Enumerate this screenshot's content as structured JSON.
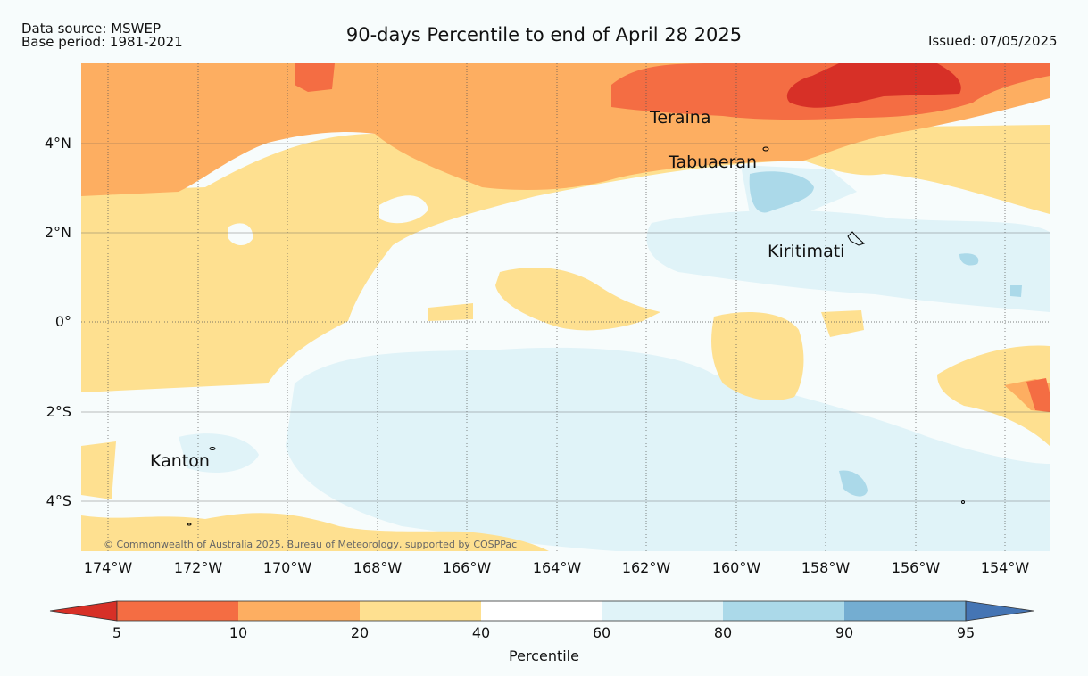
{
  "header": {
    "data_source": "Data source: MSWEP",
    "base_period": "Base period: 1981-2021",
    "title": "90-days Percentile to end of April 28 2025",
    "issued": "Issued: 07/05/2025"
  },
  "map": {
    "lat_labels": [
      "4°N",
      "2°N",
      "0°",
      "2°S",
      "4°S"
    ],
    "lon_labels": [
      "174°W",
      "172°W",
      "170°W",
      "168°W",
      "166°W",
      "164°W",
      "162°W",
      "160°W",
      "158°W",
      "156°W",
      "154°W"
    ],
    "places": [
      "Teraina",
      "Tabuaeran",
      "Kiritimati",
      "Kanton"
    ],
    "copyright": "© Commonwealth of Australia 2025, Bureau of Meteorology, supported by COSPPac"
  },
  "colorbar": {
    "ticks": [
      "5",
      "10",
      "20",
      "40",
      "60",
      "80",
      "90",
      "95"
    ],
    "title": "Percentile",
    "colors": [
      "#d73027",
      "#f46d43",
      "#fdae61",
      "#fee090",
      "#ffffff",
      "#e0f3f8",
      "#abd9e9",
      "#74add1",
      "#4575b4"
    ]
  }
}
